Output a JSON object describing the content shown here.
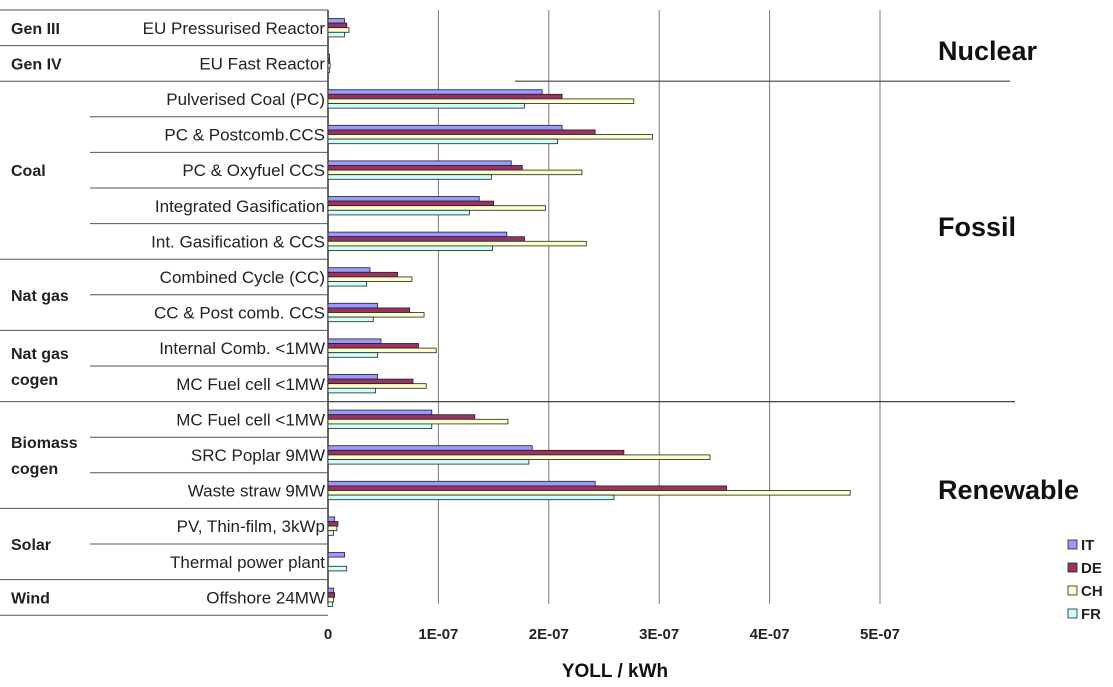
{
  "chart_data": {
    "type": "bar",
    "orientation": "horizontal",
    "xlabel": "YOLL / kWh",
    "ylabel": "",
    "title": "",
    "xlim": [
      0,
      6e-07
    ],
    "x_ticks": [
      "0",
      "1E-07",
      "2E-07",
      "3E-07",
      "4E-07",
      "5E-07"
    ],
    "grid": "vertical",
    "legend_position": "right",
    "series": [
      {
        "name": "IT",
        "color": "#9999ff"
      },
      {
        "name": "DE",
        "color": "#993366"
      },
      {
        "name": "CH",
        "color": "#ffffcc"
      },
      {
        "name": "FR",
        "color": "#ccffff"
      }
    ],
    "categories": [
      "EU Pressurised Reactor",
      "EU Fast Reactor",
      "Pulverised Coal (PC)",
      "PC & Postcomb.CCS",
      "PC & Oxyfuel CCS",
      "Integrated Gasification",
      "Int. Gasification & CCS",
      "Combined Cycle (CC)",
      "CC & Post comb. CCS",
      "Internal Comb. <1MW",
      "MC Fuel cell <1MW",
      "MC Fuel cell <1MW",
      "SRC Poplar 9MW",
      "Waste straw 9MW",
      "PV, Thin-film, 3kWp",
      "Thermal power plant",
      "Offshore 24MW"
    ],
    "values": [
      [
        1.5e-08,
        1.7e-08,
        1.9e-08,
        1.5e-08
      ],
      [
        1e-09,
        1.5e-09,
        2e-09,
        1e-09
      ],
      [
        1.94e-07,
        2.12e-07,
        2.77e-07,
        1.78e-07
      ],
      [
        2.12e-07,
        2.42e-07,
        2.94e-07,
        2.08e-07
      ],
      [
        1.66e-07,
        1.76e-07,
        2.3e-07,
        1.48e-07
      ],
      [
        1.37e-07,
        1.5e-07,
        1.97e-07,
        1.28e-07
      ],
      [
        1.62e-07,
        1.78e-07,
        2.34e-07,
        1.49e-07
      ],
      [
        3.8e-08,
        6.3e-08,
        7.6e-08,
        3.5e-08
      ],
      [
        4.5e-08,
        7.4e-08,
        8.7e-08,
        4.1e-08
      ],
      [
        4.8e-08,
        8.2e-08,
        9.8e-08,
        4.5e-08
      ],
      [
        4.5e-08,
        7.7e-08,
        8.9e-08,
        4.3e-08
      ],
      [
        9.4e-08,
        1.33e-07,
        1.63e-07,
        9.4e-08
      ],
      [
        1.85e-07,
        2.68e-07,
        3.46e-07,
        1.82e-07
      ],
      [
        2.42e-07,
        3.61e-07,
        4.73e-07,
        2.59e-07
      ],
      [
        6e-09,
        9e-09,
        8e-09,
        5e-09
      ],
      [
        1.5e-08,
        0,
        0,
        1.7e-08
      ],
      [
        5e-09,
        6e-09,
        5e-09,
        4e-09
      ]
    ],
    "groups": [
      {
        "label": "Gen III",
        "from": 0,
        "to": 0
      },
      {
        "label": "Gen IV",
        "from": 1,
        "to": 1
      },
      {
        "label": "Coal",
        "from": 2,
        "to": 6
      },
      {
        "label": "Nat gas",
        "from": 7,
        "to": 8
      },
      {
        "label": "Nat gas\ncogen",
        "from": 9,
        "to": 10
      },
      {
        "label": "Biomass\ncogen",
        "from": 11,
        "to": 13
      },
      {
        "label": "Solar",
        "from": 14,
        "to": 15
      },
      {
        "label": "Wind",
        "from": 16,
        "to": 16
      }
    ],
    "annotations": [
      "Nuclear",
      "Fossil",
      "Renewable"
    ]
  }
}
